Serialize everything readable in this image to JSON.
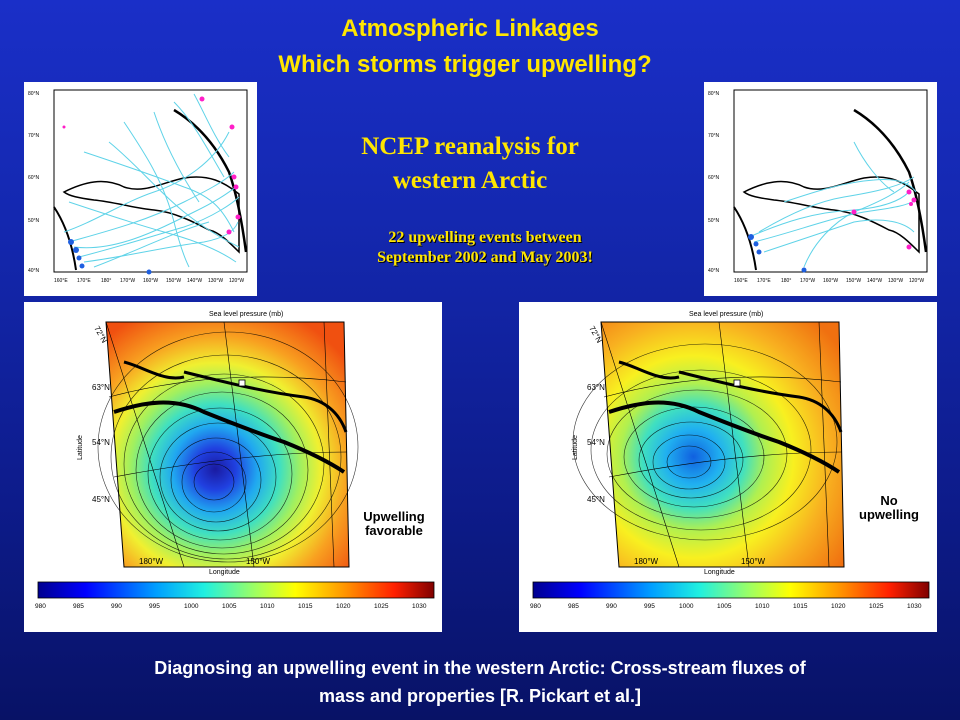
{
  "title_line1": "Atmospheric Linkages",
  "title_line2": "Which storms trigger upwelling?",
  "ncep_line1": "NCEP reanalysis for",
  "ncep_line2": "western Arctic",
  "events_line1": "22 upwelling events between",
  "events_line2": "September 2002 and May 2003!",
  "left_small_map": {
    "lat_labels": [
      "80°N",
      "70°N",
      "60°N",
      "50°N",
      "40°N"
    ],
    "lon_labels": [
      "160°E",
      "170°E",
      "180°",
      "170°W",
      "160°W",
      "150°W",
      "140°W",
      "130°W",
      "120°W"
    ]
  },
  "right_small_map": {
    "lat_labels": [
      "80°N",
      "70°N",
      "60°N",
      "50°N",
      "40°N"
    ],
    "lon_labels": [
      "160°E",
      "170°E",
      "180°",
      "170°W",
      "160°W",
      "150°W",
      "140°W",
      "130°W",
      "120°W"
    ]
  },
  "slp_map_title": "Sea level pressure (mb)",
  "slp_xlabel": "Longitude",
  "slp_ylabel": "Latitude",
  "slp_lat_labels": [
    "72°N",
    "63°N",
    "54°N",
    "45°N"
  ],
  "slp_lon_labels": [
    "180°W",
    "150°W"
  ],
  "colorbar_ticks": [
    "980",
    "985",
    "990",
    "995",
    "1000",
    "1005",
    "1010",
    "1015",
    "1020",
    "1025",
    "1030"
  ],
  "left_map_label_line1": "Upwelling",
  "left_map_label_line2": "favorable",
  "right_map_label_line1": "No",
  "right_map_label_line2": "upwelling",
  "footer_line1": "Diagnosing an upwelling event in the western Arctic: Cross-stream fluxes of",
  "footer_line2": "mass and properties [R. Pickart et al.]",
  "colors": {
    "title": "#ffe600",
    "track": "#5fd3e8",
    "low_marker": "#1e5fe0",
    "high_marker": "#ff1ec8"
  }
}
